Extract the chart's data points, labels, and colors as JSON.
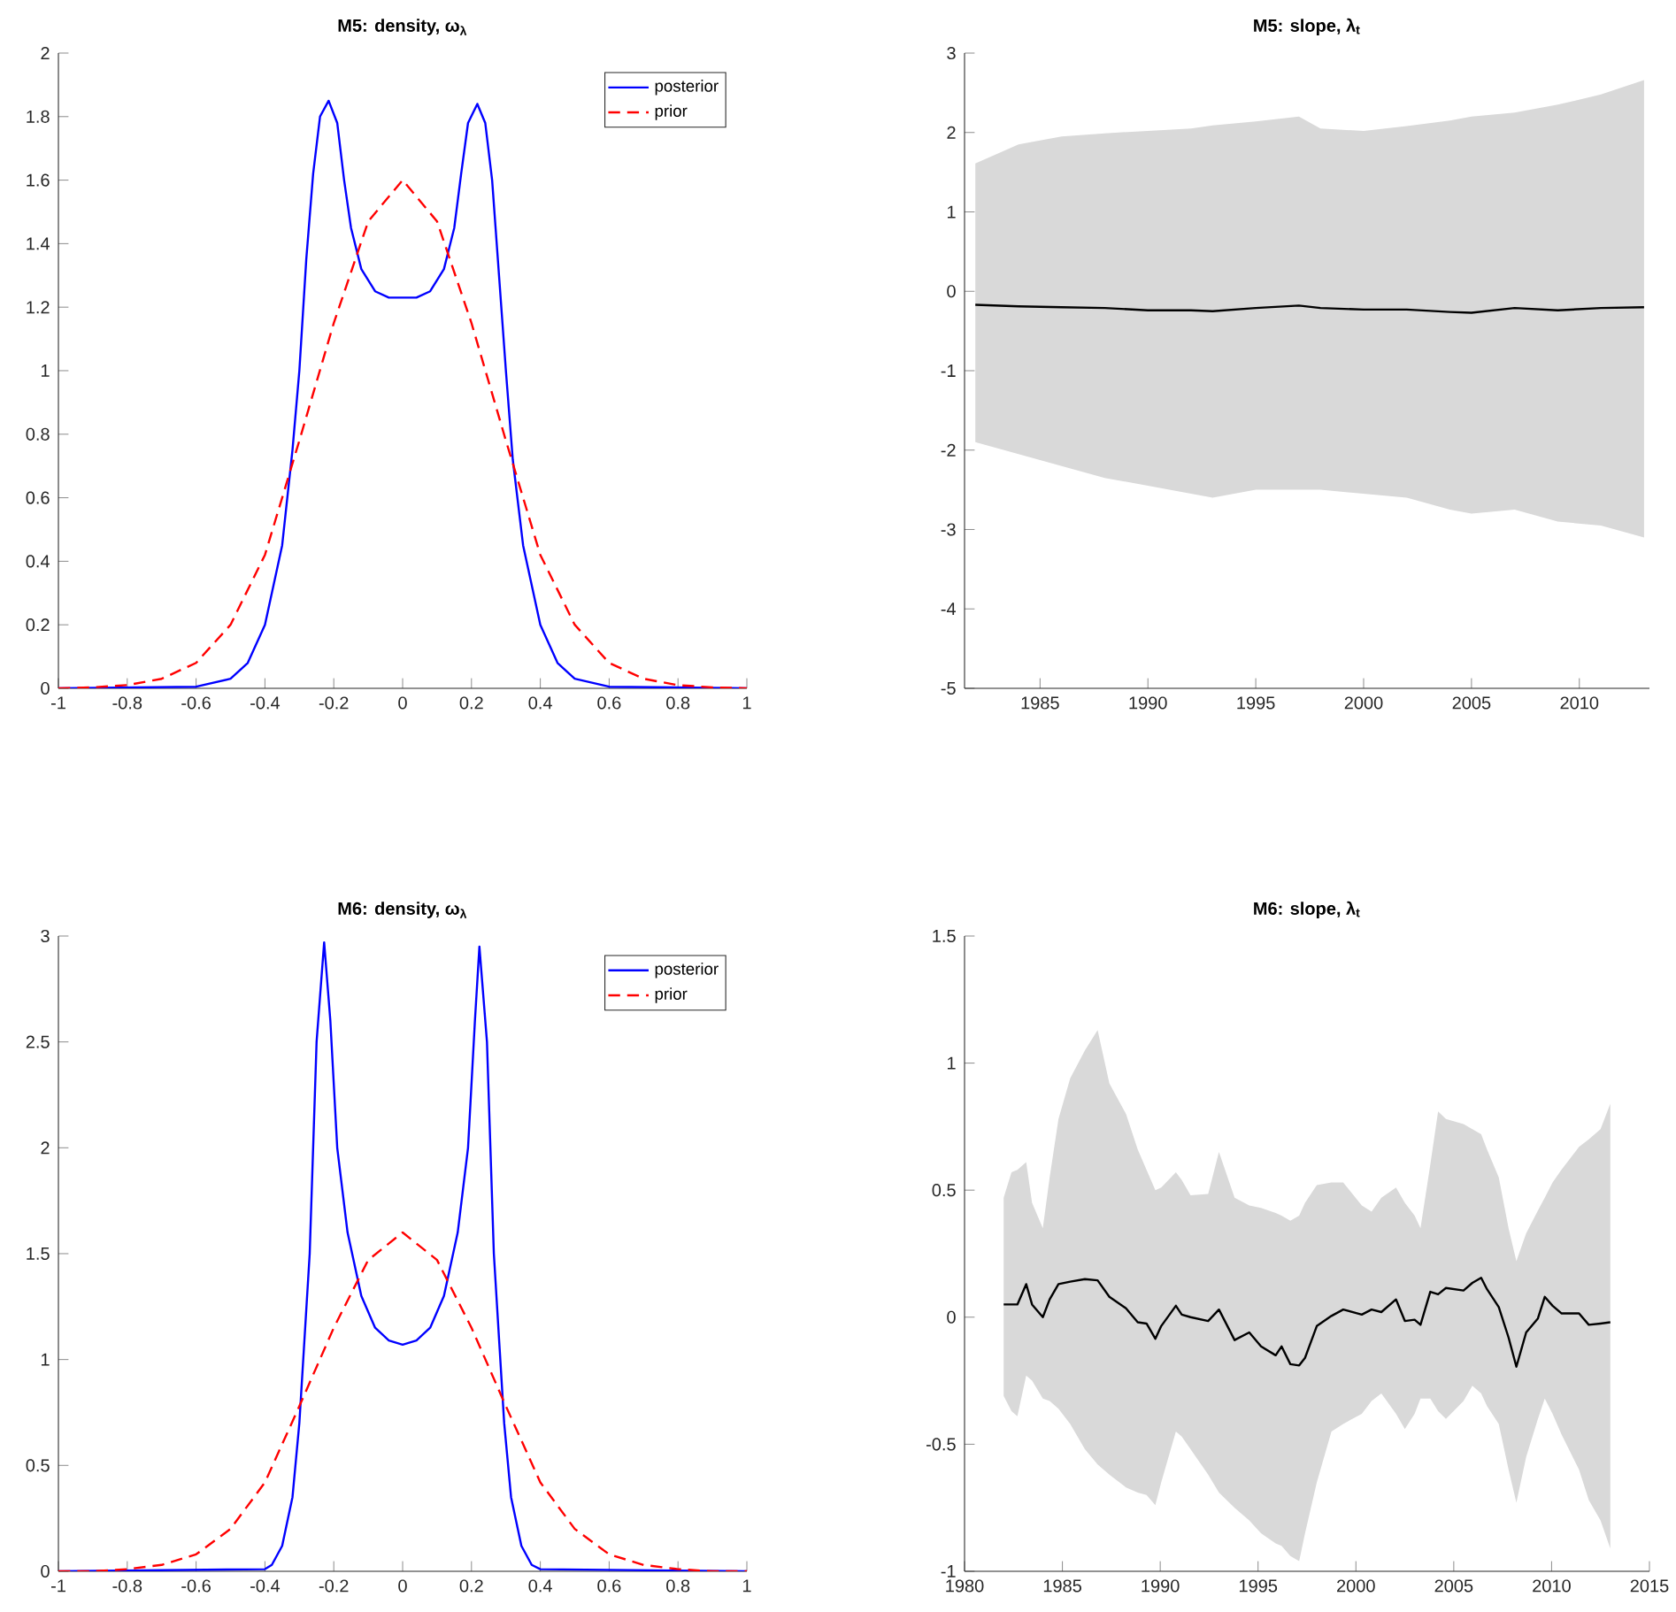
{
  "chart_data": [
    {
      "type": "line",
      "title": "M5: density, ω$_{λ}$",
      "xlim": [
        -1,
        1
      ],
      "ylim": [
        0,
        2
      ],
      "xticks": [
        -1,
        -0.8,
        -0.6,
        -0.4,
        -0.2,
        0,
        0.2,
        0.4,
        0.6,
        0.8,
        1
      ],
      "yticks": [
        0,
        0.2,
        0.4,
        0.6,
        0.8,
        1,
        1.2,
        1.4,
        1.6,
        1.8,
        2
      ],
      "legend": "top right",
      "series": [
        {
          "name": "posterior",
          "color": "#0000ff",
          "line_style": "solid",
          "x": [
            -1,
            -0.6,
            -0.5,
            -0.45,
            -0.4,
            -0.35,
            -0.32,
            -0.3,
            -0.28,
            -0.26,
            -0.24,
            -0.215,
            -0.19,
            -0.17,
            -0.15,
            -0.12,
            -0.08,
            -0.04,
            0,
            0.04,
            0.08,
            0.12,
            0.15,
            0.17,
            0.19,
            0.217,
            0.24,
            0.26,
            0.28,
            0.3,
            0.32,
            0.35,
            0.4,
            0.45,
            0.5,
            0.6,
            1
          ],
          "values": [
            0,
            0.005,
            0.03,
            0.08,
            0.2,
            0.45,
            0.75,
            1.0,
            1.35,
            1.62,
            1.8,
            1.85,
            1.78,
            1.6,
            1.45,
            1.32,
            1.25,
            1.23,
            1.23,
            1.23,
            1.25,
            1.32,
            1.45,
            1.62,
            1.78,
            1.84,
            1.78,
            1.6,
            1.3,
            1.0,
            0.72,
            0.45,
            0.2,
            0.08,
            0.03,
            0.005,
            0
          ]
        },
        {
          "name": "prior",
          "color": "#ff0000",
          "line_style": "dashed",
          "x": [
            -1,
            -0.9,
            -0.8,
            -0.7,
            -0.6,
            -0.5,
            -0.4,
            -0.3,
            -0.2,
            -0.1,
            0,
            0.1,
            0.2,
            0.3,
            0.4,
            0.5,
            0.6,
            0.7,
            0.8,
            0.9,
            1
          ],
          "values": [
            0,
            0.003,
            0.01,
            0.03,
            0.08,
            0.2,
            0.42,
            0.78,
            1.15,
            1.47,
            1.6,
            1.47,
            1.15,
            0.78,
            0.42,
            0.2,
            0.08,
            0.03,
            0.01,
            0.003,
            0
          ]
        }
      ]
    },
    {
      "type": "line",
      "title": "M5: slope, λ$_{t}$",
      "xlim": [
        1981.5,
        2013.25
      ],
      "ylim": [
        -5,
        3
      ],
      "xticks": [
        1985,
        1990,
        1995,
        2000,
        2005,
        2010
      ],
      "yticks": [
        -5,
        -4,
        -3,
        -2,
        -1,
        0,
        1,
        2,
        3
      ],
      "series": [
        {
          "color": "#000000",
          "line_style": "solid",
          "x": [
            1982,
            1984,
            1986,
            1988,
            1990,
            1992,
            1993,
            1995,
            1997,
            1998,
            2000,
            2002,
            2004,
            2005,
            2007,
            2009,
            2011,
            2013
          ],
          "values": [
            -0.17,
            -0.19,
            -0.2,
            -0.21,
            -0.24,
            -0.24,
            -0.25,
            -0.21,
            -0.18,
            -0.21,
            -0.23,
            -0.23,
            -0.26,
            -0.27,
            -0.21,
            -0.24,
            -0.21,
            -0.2
          ],
          "lower": [
            -1.9,
            -2.05,
            -2.2,
            -2.35,
            -2.45,
            -2.55,
            -2.6,
            -2.5,
            -2.5,
            -2.5,
            -2.55,
            -2.6,
            -2.75,
            -2.8,
            -2.75,
            -2.9,
            -2.95,
            -3.1
          ],
          "upper": [
            1.61,
            1.85,
            1.95,
            1.99,
            2.02,
            2.05,
            2.09,
            2.14,
            2.2,
            2.05,
            2.02,
            2.08,
            2.15,
            2.2,
            2.25,
            2.35,
            2.48,
            2.66
          ]
        }
      ]
    },
    {
      "type": "line",
      "title": "M6: density, ω$_{λ}$",
      "xlim": [
        -1,
        1
      ],
      "ylim": [
        0,
        3
      ],
      "xticks": [
        -1,
        -0.8,
        -0.6,
        -0.4,
        -0.2,
        0,
        0.2,
        0.4,
        0.6,
        0.8,
        1
      ],
      "yticks": [
        0,
        0.5,
        1,
        1.5,
        2,
        2.5,
        3
      ],
      "legend": "top right",
      "series": [
        {
          "name": "posterior",
          "color": "#0000ff",
          "line_style": "solid",
          "x": [
            -1,
            -0.4,
            -0.38,
            -0.35,
            -0.32,
            -0.3,
            -0.27,
            -0.25,
            -0.228,
            -0.21,
            -0.19,
            -0.16,
            -0.12,
            -0.08,
            -0.04,
            0,
            0.04,
            0.08,
            0.12,
            0.16,
            0.19,
            0.21,
            0.223,
            0.245,
            0.265,
            0.295,
            0.315,
            0.345,
            0.375,
            0.4,
            1
          ],
          "values": [
            0,
            0.01,
            0.03,
            0.12,
            0.35,
            0.7,
            1.5,
            2.5,
            2.97,
            2.6,
            2.0,
            1.6,
            1.3,
            1.15,
            1.09,
            1.07,
            1.09,
            1.15,
            1.3,
            1.6,
            2.0,
            2.6,
            2.95,
            2.5,
            1.5,
            0.7,
            0.35,
            0.12,
            0.03,
            0.01,
            0
          ]
        },
        {
          "name": "prior",
          "color": "#ff0000",
          "line_style": "dashed",
          "x": [
            -1,
            -0.9,
            -0.8,
            -0.7,
            -0.6,
            -0.5,
            -0.4,
            -0.3,
            -0.2,
            -0.1,
            0,
            0.1,
            0.2,
            0.3,
            0.4,
            0.5,
            0.6,
            0.7,
            0.8,
            0.9,
            1
          ],
          "values": [
            0,
            0,
            0.01,
            0.03,
            0.08,
            0.2,
            0.42,
            0.78,
            1.15,
            1.47,
            1.6,
            1.47,
            1.15,
            0.78,
            0.42,
            0.2,
            0.08,
            0.03,
            0.01,
            0,
            0
          ]
        }
      ]
    },
    {
      "type": "line",
      "title": "M6: slope, λ$_{t}$",
      "xlim": [
        1980,
        2015
      ],
      "ylim": [
        -1,
        1.5
      ],
      "xticks": [
        1980,
        1985,
        1990,
        1995,
        2000,
        2005,
        2010,
        2015
      ],
      "yticks": [
        -1,
        -0.5,
        0,
        0.5,
        1,
        1.5
      ],
      "series": [
        {
          "color": "#000000",
          "line_style": "solid",
          "x": [
            1982.0,
            1982.4,
            1982.7,
            1983.15,
            1983.45,
            1984.0,
            1984.35,
            1984.8,
            1985.4,
            1986.15,
            1986.8,
            1987.4,
            1988.25,
            1988.85,
            1989.3,
            1989.75,
            1990.05,
            1990.8,
            1991.1,
            1991.55,
            1992.45,
            1993.0,
            1993.8,
            1994.55,
            1995.15,
            1995.9,
            1996.2,
            1996.65,
            1997.1,
            1997.4,
            1998.0,
            1998.75,
            1999.35,
            2000.3,
            2000.8,
            2001.3,
            2002.05,
            2002.5,
            2003.0,
            2003.3,
            2003.8,
            2004.2,
            2004.6,
            2005.5,
            2005.95,
            2006.4,
            2006.7,
            2007.3,
            2007.8,
            2008.2,
            2008.7,
            2009.3,
            2009.65,
            2010.05,
            2010.5,
            2011.4,
            2011.9,
            2012.5,
            2013.0
          ],
          "values": [
            0.05,
            0.05,
            0.05,
            0.13,
            0.05,
            0.0,
            0.07,
            0.13,
            0.14,
            0.15,
            0.145,
            0.08,
            0.035,
            -0.02,
            -0.025,
            -0.085,
            -0.035,
            0.045,
            0.01,
            0.0,
            -0.015,
            0.03,
            -0.09,
            -0.06,
            -0.115,
            -0.15,
            -0.115,
            -0.185,
            -0.19,
            -0.16,
            -0.035,
            0.005,
            0.03,
            0.01,
            0.03,
            0.02,
            0.07,
            -0.015,
            -0.01,
            -0.03,
            0.1,
            0.09,
            0.115,
            0.105,
            0.135,
            0.155,
            0.11,
            0.04,
            -0.08,
            -0.195,
            -0.06,
            -0.005,
            0.08,
            0.045,
            0.015,
            0.015,
            -0.03,
            -0.025,
            -0.02
          ],
          "lower": [
            -0.31,
            -0.37,
            -0.39,
            -0.23,
            -0.25,
            -0.32,
            -0.33,
            -0.36,
            -0.42,
            -0.52,
            -0.58,
            -0.62,
            -0.67,
            -0.69,
            -0.7,
            -0.74,
            -0.65,
            -0.45,
            -0.47,
            -0.52,
            -0.62,
            -0.69,
            -0.75,
            -0.8,
            -0.85,
            -0.89,
            -0.9,
            -0.94,
            -0.96,
            -0.85,
            -0.65,
            -0.45,
            -0.42,
            -0.38,
            -0.33,
            -0.3,
            -0.38,
            -0.44,
            -0.38,
            -0.32,
            -0.32,
            -0.37,
            -0.4,
            -0.33,
            -0.27,
            -0.3,
            -0.35,
            -0.42,
            -0.6,
            -0.73,
            -0.55,
            -0.4,
            -0.32,
            -0.38,
            -0.46,
            -0.6,
            -0.72,
            -0.8,
            -0.91
          ],
          "upper": [
            0.47,
            0.57,
            0.58,
            0.61,
            0.45,
            0.35,
            0.55,
            0.78,
            0.94,
            1.05,
            1.13,
            0.92,
            0.8,
            0.66,
            0.58,
            0.5,
            0.51,
            0.57,
            0.54,
            0.48,
            0.485,
            0.65,
            0.47,
            0.44,
            0.43,
            0.41,
            0.4,
            0.38,
            0.4,
            0.45,
            0.52,
            0.53,
            0.53,
            0.44,
            0.415,
            0.47,
            0.51,
            0.45,
            0.4,
            0.35,
            0.6,
            0.81,
            0.78,
            0.76,
            0.74,
            0.72,
            0.66,
            0.55,
            0.35,
            0.22,
            0.33,
            0.42,
            0.47,
            0.53,
            0.58,
            0.67,
            0.7,
            0.74,
            0.84
          ]
        }
      ]
    }
  ]
}
